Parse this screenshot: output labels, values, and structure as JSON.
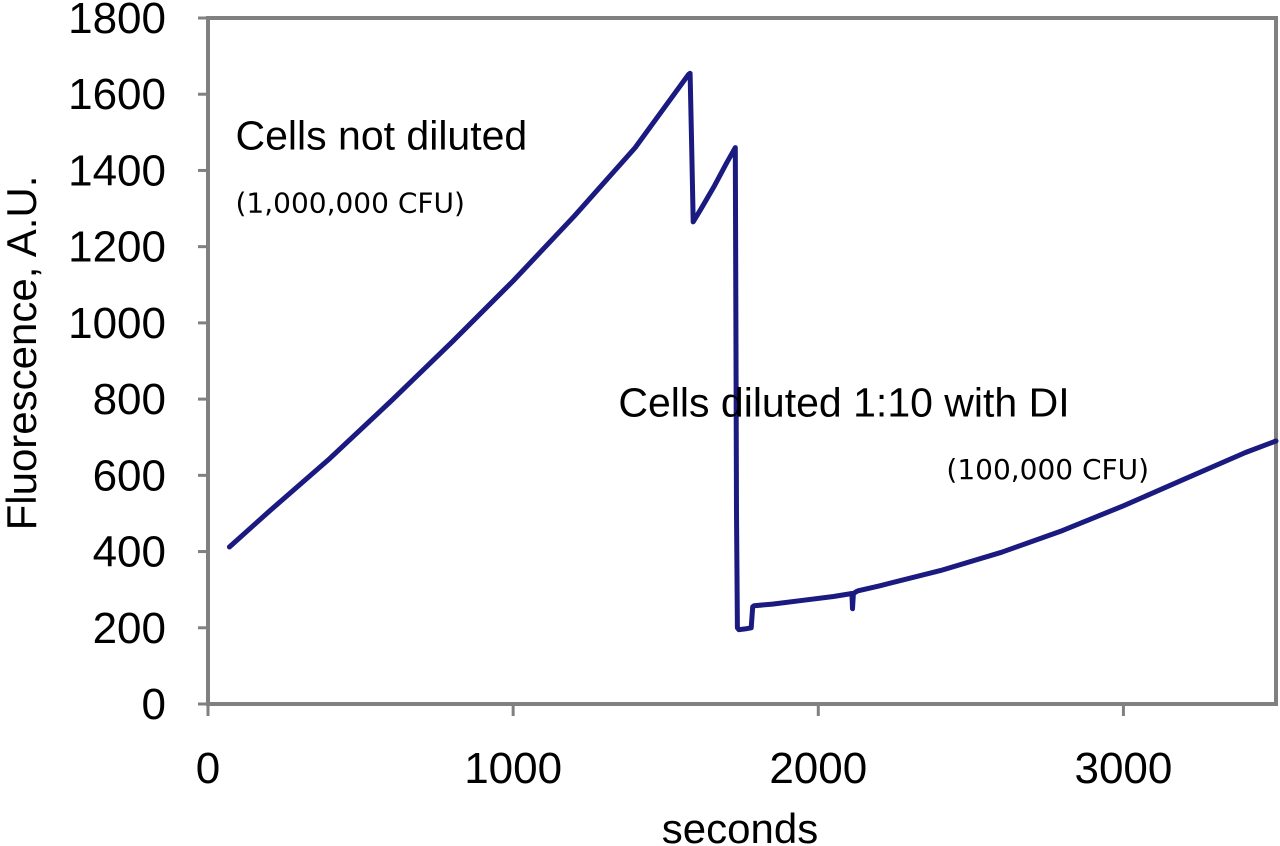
{
  "chart_data": {
    "type": "line",
    "title": "",
    "xlabel": "seconds",
    "ylabel": "Fluorescence, A.U.",
    "xlim": [
      0,
      3500
    ],
    "ylim": [
      0,
      1800
    ],
    "x_ticks": [
      0,
      1000,
      2000,
      3000
    ],
    "y_ticks": [
      0,
      200,
      400,
      600,
      800,
      1000,
      1200,
      1400,
      1600,
      1800
    ],
    "grid": false,
    "legend": "none",
    "line_color": "#1a1a80",
    "frame_color": "#808080",
    "series": [
      {
        "x": [
          70,
          200,
          400,
          600,
          800,
          1000,
          1200,
          1400,
          1575,
          1580,
          1585,
          1590,
          1620,
          1660,
          1700,
          1728,
          1730,
          1732,
          1735,
          1740,
          1760,
          1780,
          1785,
          1790,
          1850,
          1950,
          2050,
          2110,
          2112,
          2115,
          2125,
          2130,
          2200,
          2400,
          2600,
          2800,
          3000,
          3200,
          3400,
          3500
        ],
        "y": [
          412,
          505,
          645,
          795,
          950,
          1110,
          1280,
          1460,
          1652,
          1655,
          1460,
          1265,
          1305,
          1360,
          1420,
          1460,
          1000,
          500,
          200,
          195,
          197,
          200,
          255,
          258,
          262,
          272,
          282,
          290,
          250,
          290,
          295,
          297,
          310,
          350,
          398,
          455,
          520,
          590,
          660,
          690
        ]
      }
    ],
    "annotations": [
      {
        "text": "Cells not diluted",
        "x": 90,
        "y": 1455
      },
      {
        "text": "(1,000,000 CFU)",
        "x": 90,
        "y": 1290
      },
      {
        "text": "Cells diluted 1:10 with DI",
        "x": 1345,
        "y": 755
      },
      {
        "text": "(100,000 CFU)",
        "x": 2420,
        "y": 590
      }
    ]
  }
}
